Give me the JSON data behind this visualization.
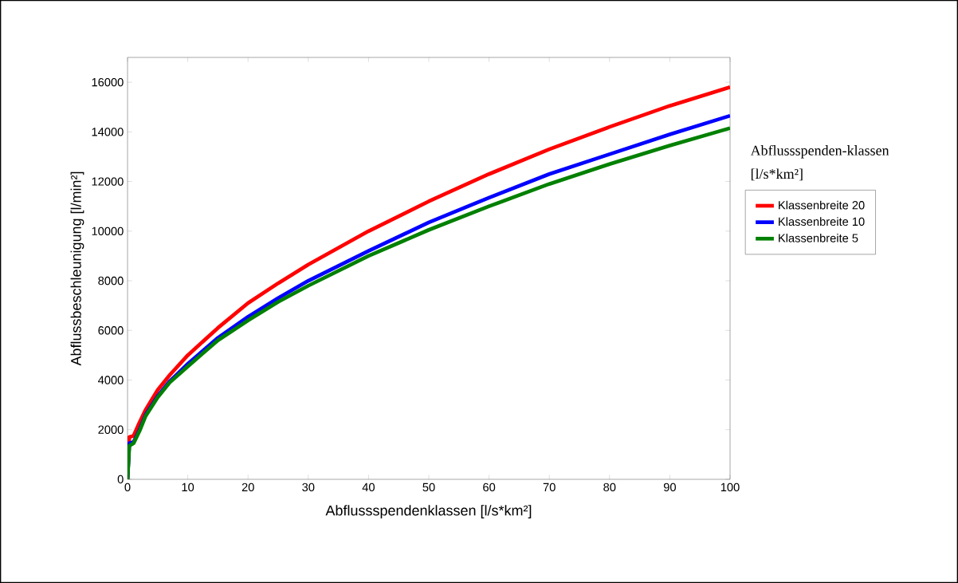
{
  "chart_data": {
    "type": "line",
    "xlabel": "Abflussspendenklassen [l/s*km²]",
    "ylabel": "Abflussbeschleunigung [l/min²]",
    "legend_title": "Abflussspenden-klassen [l/s*km²]",
    "legend": "right",
    "xlim": [
      0,
      100
    ],
    "ylim": [
      0,
      17000
    ],
    "xticks": [
      0,
      10,
      20,
      30,
      40,
      50,
      60,
      70,
      80,
      90,
      100
    ],
    "yticks": [
      0,
      2000,
      4000,
      6000,
      8000,
      10000,
      12000,
      14000,
      16000
    ],
    "grid": false,
    "marker": "none",
    "line_style": "solid",
    "series": [
      {
        "name": "Klassenbreite 20",
        "color": "#ff0000",
        "x": [
          0,
          0.3,
          1,
          2,
          3,
          5,
          7,
          10,
          15,
          20,
          25,
          30,
          40,
          50,
          60,
          70,
          80,
          90,
          100
        ],
        "values": [
          0,
          1700,
          1750,
          2300,
          2800,
          3600,
          4200,
          5000,
          6100,
          7100,
          7900,
          8650,
          10000,
          11200,
          12300,
          13300,
          14200,
          15050,
          15800
        ]
      },
      {
        "name": "Klassenbreite 10",
        "color": "#0000ff",
        "x": [
          0,
          0.3,
          1,
          2,
          3,
          5,
          7,
          10,
          15,
          20,
          25,
          30,
          40,
          50,
          60,
          70,
          80,
          90,
          100
        ],
        "values": [
          0,
          1450,
          1500,
          2000,
          2600,
          3350,
          3950,
          4650,
          5700,
          6550,
          7300,
          8000,
          9200,
          10350,
          11350,
          12300,
          13100,
          13900,
          14650
        ]
      },
      {
        "name": "Klassenbreite 5",
        "color": "#008000",
        "x": [
          0,
          0.3,
          1,
          2,
          3,
          5,
          7,
          10,
          15,
          20,
          25,
          30,
          40,
          50,
          60,
          70,
          80,
          90,
          100
        ],
        "values": [
          0,
          1350,
          1450,
          1950,
          2550,
          3300,
          3900,
          4550,
          5600,
          6400,
          7150,
          7800,
          9000,
          10050,
          11000,
          11900,
          12700,
          13450,
          14150
        ]
      }
    ]
  }
}
